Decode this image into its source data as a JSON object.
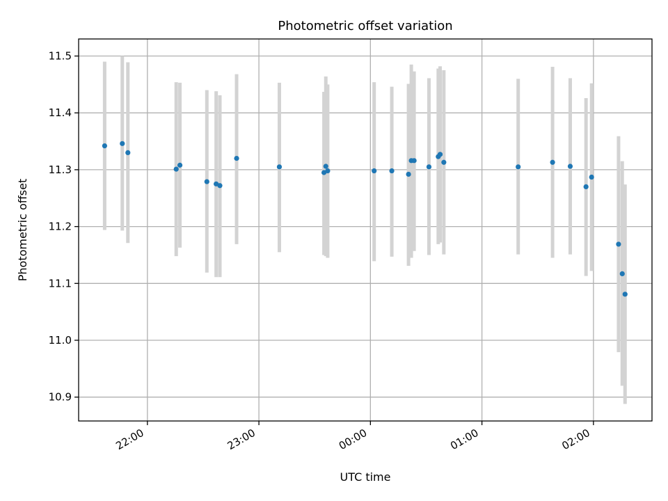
{
  "chart_data": {
    "type": "scatter",
    "title": "Photometric offset variation",
    "xlabel": "UTC time",
    "ylabel": "Photometric offset",
    "xlim": [
      "2000-01-01T21:23:00",
      "2000-01-02T02:31:30"
    ],
    "ylim": [
      10.858,
      11.53
    ],
    "x_ticks": [
      {
        "t": "2000-01-01T22:00:00",
        "label": "22:00"
      },
      {
        "t": "2000-01-01T23:00:00",
        "label": "23:00"
      },
      {
        "t": "2000-01-02T00:00:00",
        "label": "00:00"
      },
      {
        "t": "2000-01-02T01:00:00",
        "label": "01:00"
      },
      {
        "t": "2000-01-02T02:00:00",
        "label": "02:00"
      }
    ],
    "y_ticks": [
      {
        "v": 10.9,
        "label": "10.9"
      },
      {
        "v": 11.0,
        "label": "11.0"
      },
      {
        "v": 11.1,
        "label": "11.1"
      },
      {
        "v": 11.2,
        "label": "11.2"
      },
      {
        "v": 11.3,
        "label": "11.3"
      },
      {
        "v": 11.4,
        "label": "11.4"
      },
      {
        "v": 11.5,
        "label": "11.5"
      }
    ],
    "grid": true,
    "marker_color": "#1f77b4",
    "errorbar_color": "#d3d3d3",
    "points": [
      {
        "x": "2000-01-01T21:37:00",
        "y": 11.342,
        "lo": 11.194,
        "hi": 11.49
      },
      {
        "x": "2000-01-01T21:46:30",
        "y": 11.346,
        "lo": 11.193,
        "hi": 11.5
      },
      {
        "x": "2000-01-01T21:49:30",
        "y": 11.33,
        "lo": 11.171,
        "hi": 11.489
      },
      {
        "x": "2000-01-01T22:15:30",
        "y": 11.301,
        "lo": 11.148,
        "hi": 11.454
      },
      {
        "x": "2000-01-01T22:17:30",
        "y": 11.308,
        "lo": 11.163,
        "hi": 11.453
      },
      {
        "x": "2000-01-01T22:32:00",
        "y": 11.279,
        "lo": 11.119,
        "hi": 11.44
      },
      {
        "x": "2000-01-01T22:37:00",
        "y": 11.275,
        "lo": 11.111,
        "hi": 11.438
      },
      {
        "x": "2000-01-01T22:39:00",
        "y": 11.272,
        "lo": 11.111,
        "hi": 11.431
      },
      {
        "x": "2000-01-01T22:48:00",
        "y": 11.32,
        "lo": 11.169,
        "hi": 11.468
      },
      {
        "x": "2000-01-01T23:11:00",
        "y": 11.305,
        "lo": 11.155,
        "hi": 11.453
      },
      {
        "x": "2000-01-01T23:35:00",
        "y": 11.295,
        "lo": 11.15,
        "hi": 11.437
      },
      {
        "x": "2000-01-01T23:36:00",
        "y": 11.306,
        "lo": 11.148,
        "hi": 11.464
      },
      {
        "x": "2000-01-01T23:37:00",
        "y": 11.298,
        "lo": 11.145,
        "hi": 11.45
      },
      {
        "x": "2000-01-02T00:02:00",
        "y": 11.298,
        "lo": 11.139,
        "hi": 11.454
      },
      {
        "x": "2000-01-02T00:11:30",
        "y": 11.298,
        "lo": 11.147,
        "hi": 11.446
      },
      {
        "x": "2000-01-02T00:20:30",
        "y": 11.292,
        "lo": 11.131,
        "hi": 11.451
      },
      {
        "x": "2000-01-02T00:22:00",
        "y": 11.316,
        "lo": 11.145,
        "hi": 11.485
      },
      {
        "x": "2000-01-02T00:23:30",
        "y": 11.316,
        "lo": 11.157,
        "hi": 11.473
      },
      {
        "x": "2000-01-02T00:31:30",
        "y": 11.305,
        "lo": 11.15,
        "hi": 11.461
      },
      {
        "x": "2000-01-02T00:36:30",
        "y": 11.323,
        "lo": 11.169,
        "hi": 11.478
      },
      {
        "x": "2000-01-02T00:37:30",
        "y": 11.327,
        "lo": 11.172,
        "hi": 11.482
      },
      {
        "x": "2000-01-02T00:39:30",
        "y": 11.313,
        "lo": 11.151,
        "hi": 11.475
      },
      {
        "x": "2000-01-02T01:19:30",
        "y": 11.305,
        "lo": 11.151,
        "hi": 11.46
      },
      {
        "x": "2000-01-02T01:38:00",
        "y": 11.313,
        "lo": 11.145,
        "hi": 11.481
      },
      {
        "x": "2000-01-02T01:47:30",
        "y": 11.306,
        "lo": 11.151,
        "hi": 11.461
      },
      {
        "x": "2000-01-02T01:56:00",
        "y": 11.27,
        "lo": 11.113,
        "hi": 11.426
      },
      {
        "x": "2000-01-02T01:59:00",
        "y": 11.287,
        "lo": 11.122,
        "hi": 11.452
      },
      {
        "x": "2000-01-02T02:13:30",
        "y": 11.169,
        "lo": 10.979,
        "hi": 11.359
      },
      {
        "x": "2000-01-02T02:15:30",
        "y": 11.117,
        "lo": 10.92,
        "hi": 11.315
      },
      {
        "x": "2000-01-02T02:17:00",
        "y": 11.081,
        "lo": 10.888,
        "hi": 11.274
      }
    ]
  }
}
